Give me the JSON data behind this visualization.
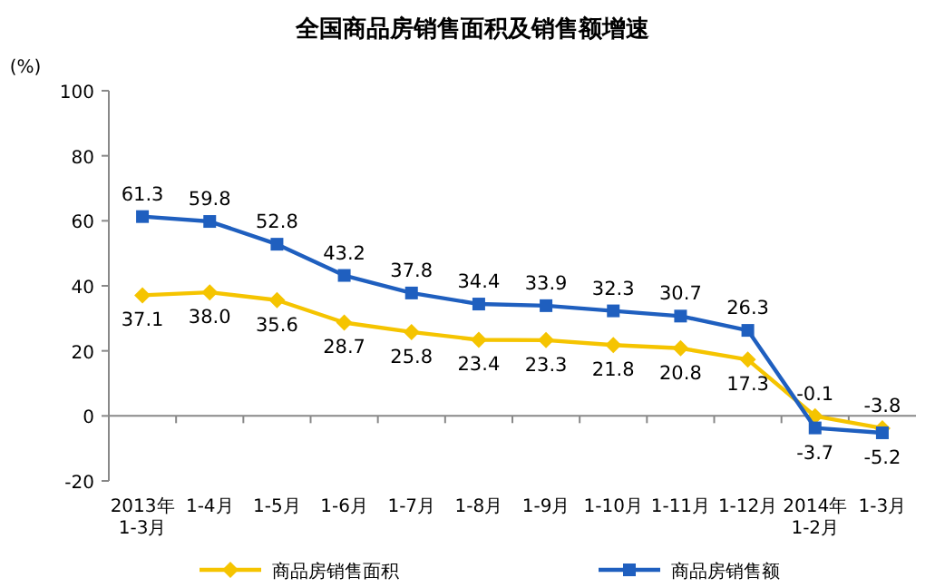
{
  "chart_data": {
    "type": "line",
    "title": "全国商品房销售面积及销售额增速",
    "ylabel": "(%)",
    "categories": [
      "2013年\n1-3月",
      "1-4月",
      "1-5月",
      "1-6月",
      "1-7月",
      "1-8月",
      "1-9月",
      "1-10月",
      "1-11月",
      "1-12月",
      "2014年\n1-2月",
      "1-3月"
    ],
    "series": [
      {
        "name": "商品房销售面积",
        "color": "#f5c400",
        "marker": "diamond",
        "values": [
          37.1,
          38.0,
          35.6,
          28.7,
          25.8,
          23.4,
          23.3,
          21.8,
          20.8,
          17.3,
          -0.1,
          -3.8
        ],
        "value_labels": [
          "37.1",
          "38.0",
          "35.6",
          "28.7",
          "25.8",
          "23.4",
          "23.3",
          "21.8",
          "20.8",
          "17.3",
          "-0.1",
          "-3.8"
        ]
      },
      {
        "name": "商品房销售额",
        "color": "#1f5fbf",
        "marker": "square",
        "values": [
          61.3,
          59.8,
          52.8,
          43.2,
          37.8,
          34.4,
          33.9,
          32.3,
          30.7,
          26.3,
          -3.7,
          -5.2
        ],
        "value_labels": [
          "61.3",
          "59.8",
          "52.8",
          "43.2",
          "37.8",
          "34.4",
          "33.9",
          "32.3",
          "30.7",
          "26.3",
          "-3.7",
          "-5.2"
        ]
      }
    ],
    "ylim": [
      -20,
      100
    ],
    "yticks": [
      -20,
      0,
      20,
      40,
      60,
      80,
      100
    ],
    "legend": "bottom"
  }
}
